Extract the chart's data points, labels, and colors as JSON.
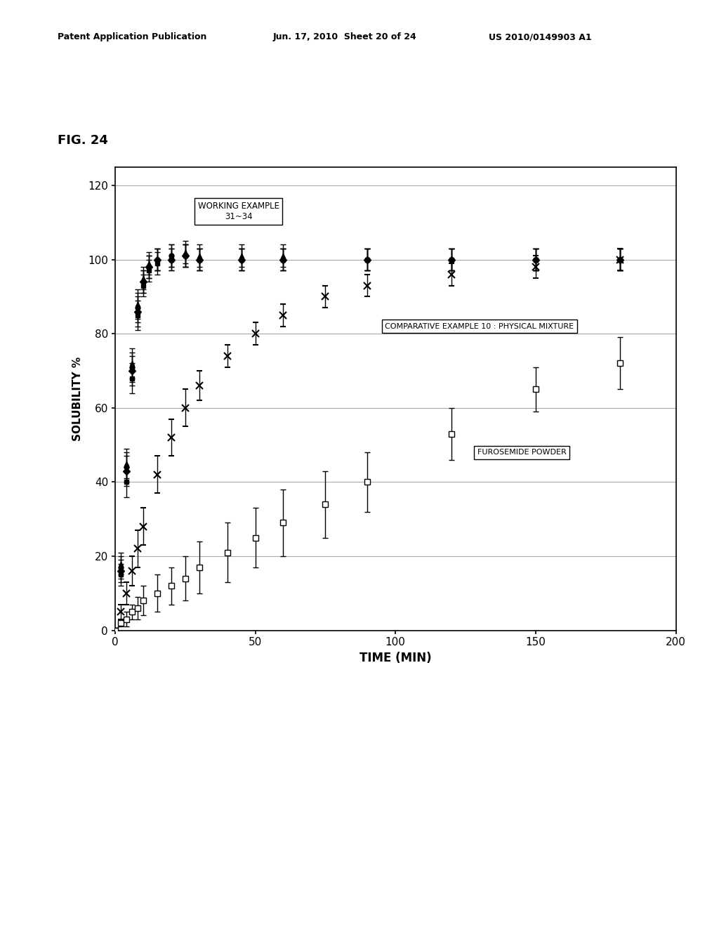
{
  "title": "FIG. 24",
  "xlabel": "TIME (MIN)",
  "ylabel": "SOLUBILITY %",
  "xlim": [
    0,
    200
  ],
  "ylim": [
    0,
    125
  ],
  "yticks": [
    0,
    20,
    40,
    60,
    80,
    100,
    120
  ],
  "xticks": [
    0,
    50,
    100,
    150,
    200
  ],
  "header_left": "Patent Application Publication",
  "header_mid": "Jun. 17, 2010  Sheet 20 of 24",
  "header_right": "US 2010/0149903 A1",
  "working_example_label": "WORKING EXAMPLE\n31~34",
  "comparative_label": "COMPARATIVE EXAMPLE 10 : PHYSICAL MIXTURE",
  "furosemide_label": "FUROSEMIDE POWDER",
  "series_WE31": {
    "x": [
      0,
      2,
      4,
      6,
      8,
      10,
      12,
      15,
      20,
      25,
      30,
      45,
      60,
      90,
      120,
      150,
      180
    ],
    "y": [
      0,
      15,
      40,
      68,
      85,
      93,
      97,
      99,
      100,
      101,
      100,
      100,
      100,
      100,
      100,
      100,
      100
    ],
    "yerr": [
      0,
      3,
      4,
      4,
      4,
      3,
      3,
      3,
      3,
      3,
      3,
      3,
      3,
      3,
      3,
      3,
      3
    ],
    "marker": "s",
    "color": "#000000",
    "fillstyle": "full"
  },
  "series_WE32": {
    "x": [
      0,
      2,
      4,
      6,
      8,
      10,
      12,
      15,
      20,
      25,
      30,
      45,
      60,
      90,
      120,
      150,
      180
    ],
    "y": [
      0,
      18,
      45,
      72,
      88,
      95,
      99,
      100,
      101,
      102,
      101,
      101,
      101,
      100,
      100,
      100,
      100
    ],
    "yerr": [
      0,
      3,
      4,
      4,
      4,
      3,
      3,
      3,
      3,
      3,
      3,
      3,
      3,
      3,
      3,
      3,
      3
    ],
    "marker": "^",
    "color": "#000000",
    "fillstyle": "full"
  },
  "series_WE33": {
    "x": [
      0,
      2,
      4,
      6,
      8,
      10,
      12,
      15,
      20,
      25,
      30,
      45,
      60,
      90,
      120,
      150,
      180
    ],
    "y": [
      0,
      16,
      43,
      70,
      86,
      94,
      98,
      100,
      100,
      101,
      100,
      100,
      100,
      100,
      100,
      100,
      100
    ],
    "yerr": [
      0,
      3,
      4,
      4,
      4,
      3,
      3,
      3,
      3,
      3,
      3,
      3,
      3,
      3,
      3,
      3,
      3
    ],
    "marker": "D",
    "color": "#000000",
    "fillstyle": "full"
  },
  "series_WE34": {
    "x": [
      0,
      2,
      4,
      6,
      8,
      10,
      12,
      15,
      20,
      25,
      30,
      45,
      60,
      90,
      120,
      150,
      180
    ],
    "y": [
      0,
      17,
      44,
      71,
      87,
      94,
      98,
      100,
      101,
      101,
      100,
      100,
      100,
      100,
      100,
      100,
      100
    ],
    "yerr": [
      0,
      3,
      4,
      4,
      4,
      3,
      3,
      3,
      3,
      3,
      3,
      3,
      3,
      3,
      3,
      3,
      3
    ],
    "marker": "o",
    "color": "#000000",
    "fillstyle": "full"
  },
  "series_comp": {
    "x": [
      0,
      2,
      4,
      6,
      8,
      10,
      15,
      20,
      25,
      30,
      40,
      50,
      60,
      75,
      90,
      120,
      150,
      180
    ],
    "y": [
      0,
      5,
      10,
      16,
      22,
      28,
      42,
      52,
      60,
      66,
      74,
      80,
      85,
      90,
      93,
      96,
      98,
      100
    ],
    "yerr": [
      0,
      2,
      3,
      4,
      5,
      5,
      5,
      5,
      5,
      4,
      3,
      3,
      3,
      3,
      3,
      3,
      3,
      3
    ],
    "marker": "x",
    "color": "#000000",
    "fillstyle": "full"
  },
  "series_furo": {
    "x": [
      0,
      2,
      4,
      6,
      8,
      10,
      15,
      20,
      25,
      30,
      40,
      50,
      60,
      75,
      90,
      120,
      150,
      180
    ],
    "y": [
      0,
      2,
      3,
      5,
      6,
      8,
      10,
      12,
      14,
      17,
      21,
      25,
      29,
      34,
      40,
      53,
      65,
      72
    ],
    "yerr": [
      0,
      1,
      2,
      2,
      3,
      4,
      5,
      5,
      6,
      7,
      8,
      8,
      9,
      9,
      8,
      7,
      6,
      7
    ],
    "marker": "s",
    "color": "#000000",
    "fillstyle": "none"
  },
  "background_color": "#ffffff",
  "grid_color": "#aaaaaa",
  "fig_label_color": "#000000"
}
